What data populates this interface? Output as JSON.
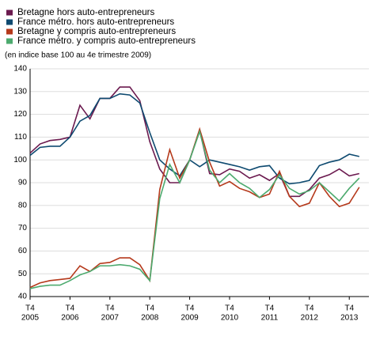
{
  "chart_data": {
    "type": "line",
    "subtitle": "(en indice base 100 au 4e trimestre 2009)",
    "categories": [
      [
        "T4",
        "2005"
      ],
      null,
      null,
      null,
      [
        "T4",
        "2006"
      ],
      null,
      null,
      null,
      [
        "T4",
        "2007"
      ],
      null,
      null,
      null,
      [
        "T4",
        "2008"
      ],
      null,
      null,
      null,
      [
        "T4",
        "2009"
      ],
      null,
      null,
      null,
      [
        "T4",
        "2010"
      ],
      null,
      null,
      null,
      [
        "T4",
        "2011"
      ],
      null,
      null,
      null,
      [
        "T4",
        "2012"
      ],
      null,
      null,
      null,
      [
        "T4",
        "2013"
      ],
      null
    ],
    "series": [
      {
        "name": "Bretagne hors auto-entrepreneurs",
        "color": "#6b1a4f",
        "values": [
          103,
          107,
          108.5,
          109,
          110,
          124,
          118,
          127,
          127,
          132,
          132,
          126,
          108,
          96,
          90,
          90,
          100,
          113,
          94,
          93.5,
          96,
          95,
          92,
          93.5,
          91,
          94,
          84,
          84,
          87,
          92,
          93.5,
          96,
          93,
          94
        ]
      },
      {
        "name": "France métro. hors auto-entrepreneurs",
        "color": "#0e4a70",
        "values": [
          102,
          105.5,
          106,
          106,
          110,
          117,
          119.5,
          127,
          127,
          129,
          128.5,
          125,
          112,
          100,
          96,
          93,
          100,
          97,
          100,
          99,
          98,
          97,
          95.5,
          97,
          97.5,
          92,
          89.5,
          90,
          91,
          97.5,
          99,
          100,
          102.5,
          101.5
        ]
      },
      {
        "name": "Bretagne y compris auto-entrepreneurs",
        "color": "#b5391b",
        "values": [
          44,
          46,
          47,
          47.5,
          48,
          53.5,
          51,
          54.5,
          55,
          57,
          57,
          54,
          47,
          87,
          104.5,
          92,
          100,
          113.5,
          99,
          88.5,
          90.5,
          87.5,
          86,
          83.5,
          85,
          95,
          84,
          79.5,
          81,
          90,
          84,
          79.5,
          81,
          88
        ]
      },
      {
        "name": "France métro. y compris auto-entrepreneurs",
        "color": "#4caa6e",
        "values": [
          43.5,
          44.5,
          45,
          45,
          47,
          49.5,
          51,
          53.5,
          53.5,
          54,
          53.5,
          52,
          47,
          83,
          98,
          90,
          100,
          112.5,
          95.5,
          90,
          94,
          90,
          87.5,
          83.5,
          87,
          93.5,
          87.5,
          85,
          86.5,
          90,
          86,
          82,
          87.5,
          92
        ]
      }
    ],
    "ylim": [
      40,
      140
    ],
    "yticks": [
      40,
      50,
      60,
      70,
      80,
      90,
      100,
      110,
      120,
      130,
      140
    ],
    "grid": true
  }
}
